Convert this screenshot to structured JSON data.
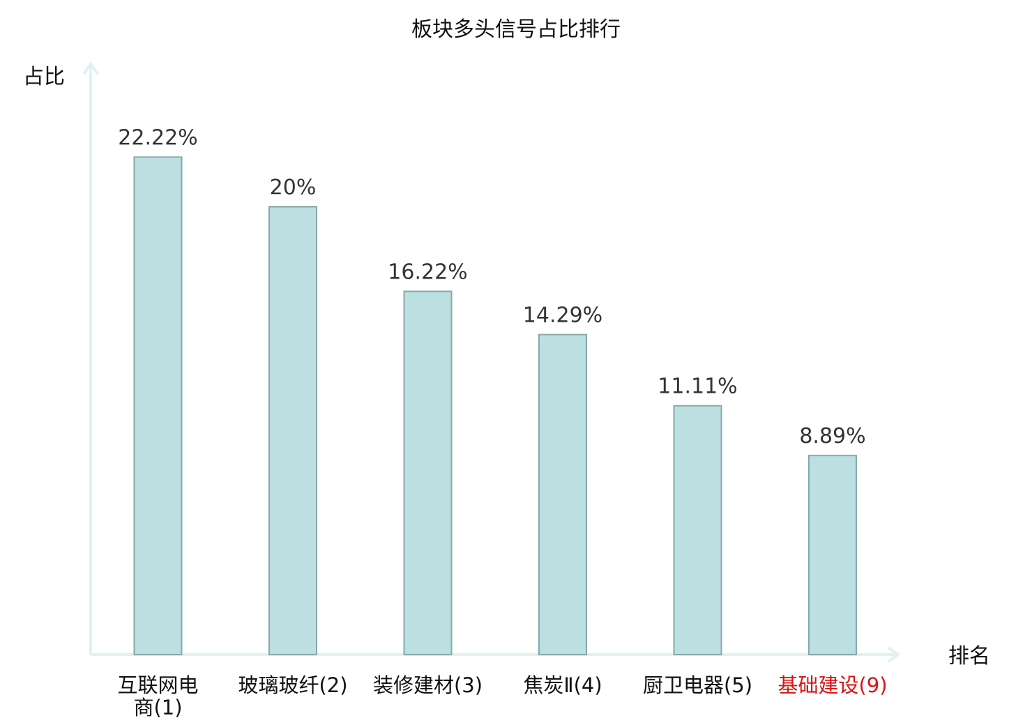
{
  "colors": {
    "bar_fill": "#bce0e2",
    "bar_stroke": "#86a8ab",
    "axis": "#dff2f1",
    "text": "#333333",
    "label_text": "#111111",
    "highlight": "#dd1111"
  },
  "chart_data": {
    "type": "bar",
    "title": "板块多头信号占比排行",
    "ylabel": "占比",
    "xlabel": "排名",
    "ylim": [
      0,
      25.5
    ],
    "grid": false,
    "legend": "none",
    "categories": [
      {
        "name": "互联网电",
        "name2": "商",
        "rank": "(1)",
        "highlight": false
      },
      {
        "name": "玻璃玻纤",
        "name2": "",
        "rank": "(2)",
        "highlight": false
      },
      {
        "name": "装修建材",
        "name2": "",
        "rank": "(3)",
        "highlight": false
      },
      {
        "name": "焦炭Ⅱ",
        "name2": "",
        "rank": "(4)",
        "highlight": false
      },
      {
        "name": "厨卫电器",
        "name2": "",
        "rank": "(5)",
        "highlight": false
      },
      {
        "name": "基础建设",
        "name2": "",
        "rank": "(9)",
        "highlight": true
      }
    ],
    "values": [
      22.22,
      20,
      16.22,
      14.29,
      11.11,
      8.89
    ],
    "value_labels": [
      "22.22%",
      "20%",
      "16.22%",
      "14.29%",
      "11.11%",
      "8.89%"
    ]
  }
}
